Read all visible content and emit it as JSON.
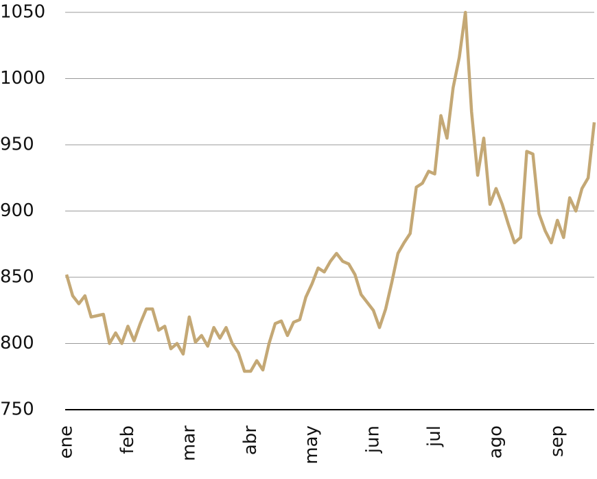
{
  "chart_data": {
    "type": "line",
    "categories": [
      "ene",
      null,
      null,
      null,
      null,
      null,
      null,
      null,
      null,
      null,
      "feb",
      null,
      null,
      null,
      null,
      null,
      null,
      null,
      null,
      null,
      "mar",
      null,
      null,
      null,
      null,
      null,
      null,
      null,
      null,
      null,
      "abr",
      null,
      null,
      null,
      null,
      null,
      null,
      null,
      null,
      null,
      "may",
      null,
      null,
      null,
      null,
      null,
      null,
      null,
      null,
      null,
      "jun",
      null,
      null,
      null,
      null,
      null,
      null,
      null,
      null,
      null,
      "jul",
      null,
      null,
      null,
      null,
      null,
      null,
      null,
      null,
      null,
      "ago",
      null,
      null,
      null,
      null,
      null,
      null,
      null,
      null,
      null,
      "sep",
      null,
      null,
      null,
      null,
      null,
      null
    ],
    "values": [
      852,
      836,
      830,
      836,
      820,
      821,
      822,
      800,
      808,
      800,
      813,
      802,
      815,
      826,
      826,
      810,
      813,
      796,
      800,
      792,
      820,
      801,
      806,
      798,
      812,
      804,
      812,
      800,
      793,
      779,
      779,
      787,
      780,
      800,
      815,
      817,
      806,
      816,
      818,
      835,
      845,
      857,
      854,
      862,
      868,
      862,
      860,
      852,
      837,
      831,
      825,
      812,
      826,
      846,
      868,
      876,
      883,
      918,
      921,
      930,
      928,
      972,
      955,
      993,
      1016,
      1050,
      975,
      927,
      955,
      905,
      917,
      905,
      890,
      876,
      880,
      945,
      943,
      898,
      885,
      876,
      893,
      880,
      910,
      900,
      917,
      925,
      967
    ],
    "color": "#c4a875",
    "ylim": [
      750,
      1050
    ],
    "yticks": [
      750,
      800,
      850,
      900,
      950,
      1000,
      1050
    ],
    "grid": true
  }
}
